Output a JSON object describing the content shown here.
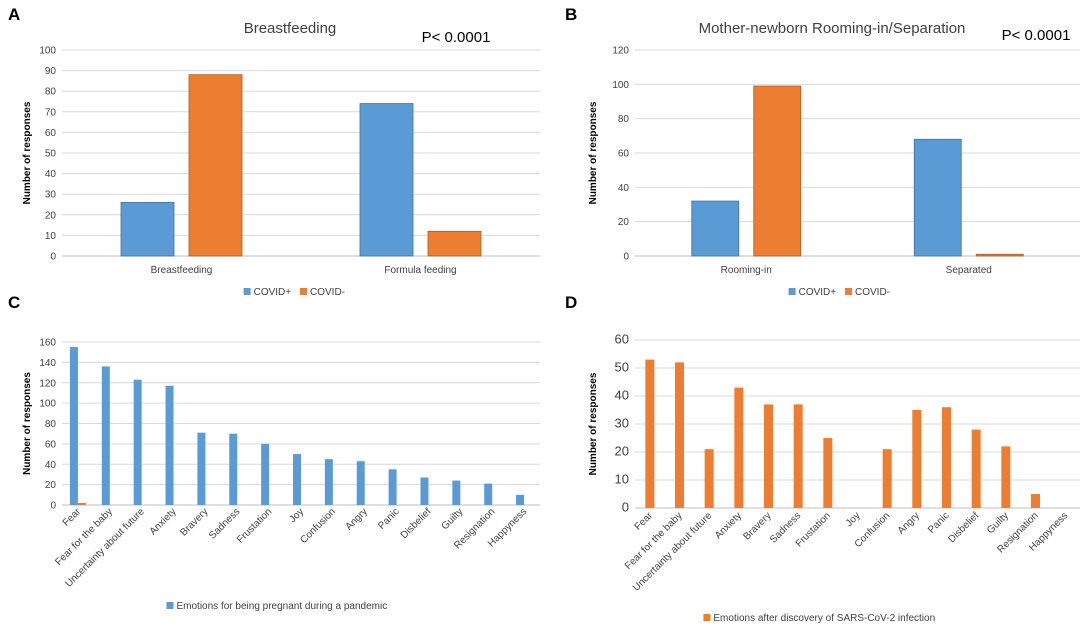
{
  "colors": {
    "covid_pos": "#5B9BD5",
    "covid_neg": "#ED7D31",
    "grid": "#d9d9d9",
    "text": "#404040"
  },
  "chart_data": [
    {
      "panel_letter": "A",
      "type": "bar",
      "title": "Breastfeeding",
      "annotation": "P< 0.0001",
      "xlabel": "",
      "ylabel": "Number of responses",
      "ylim": [
        0,
        100
      ],
      "yticks": [
        0,
        10,
        20,
        30,
        40,
        50,
        60,
        70,
        80,
        90,
        100
      ],
      "categories": [
        "Breastfeeding",
        "Formula feeding"
      ],
      "series": [
        {
          "name": "COVID+",
          "color": "#5B9BD5",
          "values": [
            26,
            74
          ]
        },
        {
          "name": "COVID-",
          "color": "#ED7D31",
          "values": [
            88,
            12
          ]
        }
      ]
    },
    {
      "panel_letter": "B",
      "type": "bar",
      "title": "Mother-newborn Rooming-in/Separation",
      "annotation": "P< 0.0001",
      "xlabel": "",
      "ylabel": "Number of responses",
      "ylim": [
        0,
        120
      ],
      "yticks": [
        0,
        20,
        40,
        60,
        80,
        100,
        120
      ],
      "categories": [
        "Rooming-in",
        "Separated"
      ],
      "series": [
        {
          "name": "COVID+",
          "color": "#5B9BD5",
          "values": [
            32,
            68
          ]
        },
        {
          "name": "COVID-",
          "color": "#ED7D31",
          "values": [
            99,
            1
          ]
        }
      ]
    },
    {
      "panel_letter": "C",
      "type": "bar",
      "title": "",
      "xlabel": "",
      "ylabel": "Number of responses",
      "ylim": [
        0,
        160
      ],
      "yticks": [
        0,
        20,
        40,
        60,
        80,
        100,
        120,
        140,
        160
      ],
      "categories": [
        "Fear",
        "Fear for the baby",
        "Uncertainty about future",
        "Anxiety",
        "Bravery",
        "Sadness",
        "Frustation",
        "Joy",
        "Confusion",
        "Angry",
        "Panic",
        "Disbelief",
        "Guilty",
        "Resignation",
        "Happyness"
      ],
      "series": [
        {
          "name": "Emotions for being pregnant during a pandemic",
          "color": "#5B9BD5",
          "values": [
            155,
            136,
            123,
            117,
            71,
            70,
            60,
            50,
            45,
            43,
            35,
            27,
            24,
            21,
            10
          ]
        },
        {
          "name": "",
          "color": "#ED7D31",
          "values": [
            2,
            0,
            0,
            0,
            0,
            0,
            0,
            0,
            0,
            0,
            0,
            0,
            0,
            0,
            0
          ]
        }
      ]
    },
    {
      "panel_letter": "D",
      "type": "bar",
      "title": "",
      "xlabel": "",
      "ylabel": "Number of responses",
      "ylim": [
        0,
        60
      ],
      "yticks": [
        0,
        10,
        20,
        30,
        40,
        50,
        60
      ],
      "categories": [
        "Fear",
        "Fear for the baby",
        "Uncertainty about future",
        "Anxiety",
        "Bravery",
        "Sadness",
        "Frustation",
        "Joy",
        "Confusion",
        "Angry",
        "Panic",
        "Disbelief",
        "Guilty",
        "Resignation",
        "Happyness"
      ],
      "series": [
        {
          "name": "Emotions after discovery of SARS-CoV-2 infection",
          "color": "#ED7D31",
          "values": [
            53,
            52,
            21,
            43,
            37,
            37,
            25,
            0,
            21,
            35,
            36,
            28,
            22,
            5,
            0
          ]
        }
      ]
    }
  ]
}
